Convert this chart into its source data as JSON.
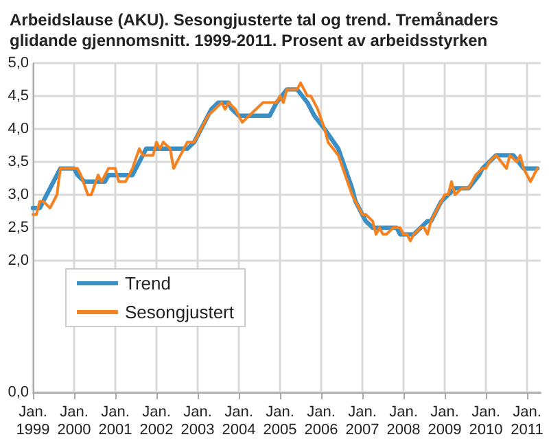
{
  "chart_data": {
    "type": "line",
    "title": "Arbeidslause (AKU). Sesongjusterte tal og trend. Tremånaders glidande gjennomsnitt. 1999-2011. Prosent av arbeidsstyrken",
    "xlim": [
      "1999-01",
      "2011-05"
    ],
    "xticks": [
      {
        "value": "1999-01",
        "label": "Jan.\n1999"
      },
      {
        "value": "2000-01",
        "label": "Jan.\n2000"
      },
      {
        "value": "2001-01",
        "label": "Jan.\n2001"
      },
      {
        "value": "2002-01",
        "label": "Jan.\n2002"
      },
      {
        "value": "2003-01",
        "label": "Jan.\n2003"
      },
      {
        "value": "2004-01",
        "label": "Jan.\n2004"
      },
      {
        "value": "2005-01",
        "label": "Jan.\n2005"
      },
      {
        "value": "2006-01",
        "label": "Jan.\n2006"
      },
      {
        "value": "2007-01",
        "label": "Jan.\n2007"
      },
      {
        "value": "2008-01",
        "label": "Jan.\n2008"
      },
      {
        "value": "2009-01",
        "label": "Jan.\n2009"
      },
      {
        "value": "2010-01",
        "label": "Jan.\n2010"
      },
      {
        "value": "2011-01",
        "label": "Jan.\n2011"
      }
    ],
    "ylim": [
      0,
      5
    ],
    "yticks": [
      {
        "value": 0,
        "label": "0,0"
      },
      {
        "value": 2,
        "label": "2,0"
      },
      {
        "value": 2.5,
        "label": "2,5"
      },
      {
        "value": 3,
        "label": "3,0"
      },
      {
        "value": 3.5,
        "label": "3,5"
      },
      {
        "value": 4,
        "label": "4,0"
      },
      {
        "value": 4.5,
        "label": "4,5"
      },
      {
        "value": 5,
        "label": "5,0"
      }
    ],
    "grid": true,
    "legend": "bottom left",
    "marker": "none",
    "line_style": "solid",
    "series": [
      {
        "name": "Trend",
        "color": "#3a8fc4",
        "x": [
          "1999-01",
          "1999-03",
          "1999-09",
          "2000-01",
          "2000-02",
          "2000-04",
          "2000-10",
          "2000-11",
          "2001-06",
          "2001-08",
          "2001-10",
          "2002-10",
          "2002-12",
          "2003-02",
          "2003-05",
          "2003-07",
          "2003-10",
          "2003-11",
          "2004-01",
          "2004-10",
          "2004-12",
          "2005-03",
          "2005-06",
          "2005-09",
          "2005-11",
          "2006-02",
          "2006-06",
          "2006-10",
          "2006-11",
          "2007-02",
          "2007-04",
          "2007-11",
          "2007-12",
          "2008-04",
          "2008-06",
          "2008-08",
          "2008-09",
          "2008-12",
          "2009-02",
          "2009-04",
          "2009-08",
          "2009-11",
          "2009-12",
          "2010-02",
          "2010-04",
          "2010-09",
          "2010-12",
          "2011-04"
        ],
        "values": [
          2.8,
          2.8,
          3.4,
          3.4,
          3.3,
          3.2,
          3.2,
          3.3,
          3.3,
          3.5,
          3.7,
          3.7,
          3.8,
          4.0,
          4.3,
          4.4,
          4.4,
          4.3,
          4.2,
          4.2,
          4.4,
          4.6,
          4.6,
          4.4,
          4.2,
          4.0,
          3.7,
          3.1,
          2.9,
          2.6,
          2.5,
          2.5,
          2.4,
          2.4,
          2.5,
          2.6,
          2.6,
          2.9,
          3.0,
          3.1,
          3.1,
          3.3,
          3.4,
          3.5,
          3.6,
          3.6,
          3.4,
          3.4
        ]
      },
      {
        "name": "Sesongjustert",
        "color": "#f58220",
        "x": [
          "1999-01",
          "1999-02",
          "1999-03",
          "1999-04",
          "1999-06",
          "1999-08",
          "1999-09",
          "2000-02",
          "2000-03",
          "2000-05",
          "2000-06",
          "2000-08",
          "2000-09",
          "2000-11",
          "2001-01",
          "2001-02",
          "2001-04",
          "2001-06",
          "2001-08",
          "2001-09",
          "2001-12",
          "2002-01",
          "2002-02",
          "2002-03",
          "2002-05",
          "2002-06",
          "2002-08",
          "2002-10",
          "2002-12",
          "2003-02",
          "2003-04",
          "2003-06",
          "2003-08",
          "2003-09",
          "2003-10",
          "2003-12",
          "2004-01",
          "2004-02",
          "2004-04",
          "2004-06",
          "2004-08",
          "2004-12",
          "2005-01",
          "2005-02",
          "2005-03",
          "2005-06",
          "2005-07",
          "2005-08",
          "2005-09",
          "2005-10",
          "2005-12",
          "2006-02",
          "2006-03",
          "2006-06",
          "2006-10",
          "2006-11",
          "2007-01",
          "2007-02",
          "2007-04",
          "2007-05",
          "2007-06",
          "2007-07",
          "2007-08",
          "2007-10",
          "2007-12",
          "2008-01",
          "2008-02",
          "2008-03",
          "2008-04",
          "2008-06",
          "2008-07",
          "2008-08",
          "2008-09",
          "2008-11",
          "2008-12",
          "2009-01",
          "2009-02",
          "2009-03",
          "2009-04",
          "2009-06",
          "2009-08",
          "2009-09",
          "2009-10",
          "2009-12",
          "2010-01",
          "2010-02",
          "2010-04",
          "2010-07",
          "2010-08",
          "2010-10",
          "2010-11",
          "2010-12",
          "2011-02",
          "2011-04"
        ],
        "values": [
          2.7,
          2.7,
          2.9,
          2.9,
          2.8,
          3.0,
          3.4,
          3.4,
          3.3,
          3.0,
          3.0,
          3.3,
          3.2,
          3.4,
          3.4,
          3.2,
          3.2,
          3.4,
          3.7,
          3.6,
          3.6,
          3.8,
          3.7,
          3.8,
          3.7,
          3.4,
          3.6,
          3.8,
          3.8,
          4.0,
          4.2,
          4.3,
          4.4,
          4.3,
          4.4,
          4.3,
          4.2,
          4.1,
          4.2,
          4.3,
          4.4,
          4.4,
          4.5,
          4.4,
          4.6,
          4.6,
          4.7,
          4.6,
          4.5,
          4.5,
          4.3,
          4.0,
          3.8,
          3.6,
          3.0,
          2.9,
          2.7,
          2.7,
          2.6,
          2.4,
          2.5,
          2.4,
          2.4,
          2.5,
          2.5,
          2.4,
          2.4,
          2.3,
          2.4,
          2.5,
          2.5,
          2.4,
          2.6,
          2.8,
          2.9,
          3.0,
          3.0,
          3.2,
          3.0,
          3.1,
          3.1,
          3.2,
          3.3,
          3.4,
          3.4,
          3.5,
          3.6,
          3.4,
          3.6,
          3.5,
          3.6,
          3.4,
          3.2,
          3.4
        ]
      }
    ]
  }
}
